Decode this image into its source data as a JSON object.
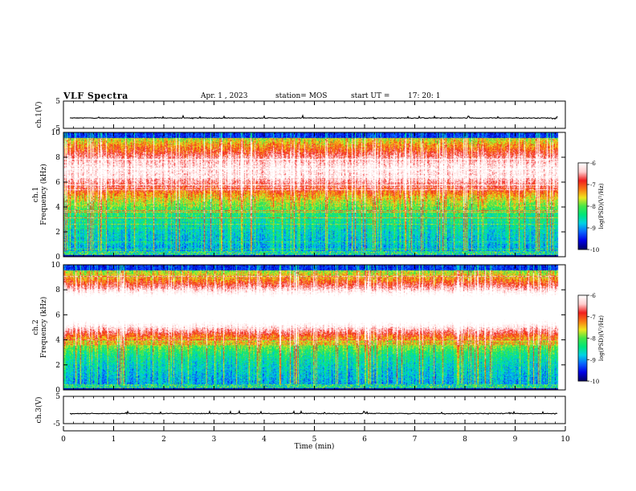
{
  "header": {
    "title": "VLF Spectra",
    "date": "Apr. 1 , 2023",
    "station": "station= MOS",
    "start_label": "start UT =",
    "start_time": "17: 20: 1"
  },
  "colors": {
    "palette": [
      "#000066",
      "#0000e6",
      "#0a64ff",
      "#00d2e6",
      "#00e67a",
      "#46e646",
      "#f0e61e",
      "#fa7814",
      "#f01e1e",
      "#ffcdcd",
      "#ffffff"
    ]
  },
  "chart_data": [
    {
      "type": "line",
      "name": "waveform-ch1",
      "ylabel": "ch.1(V)",
      "ylim": [
        -5,
        5
      ],
      "yticks": [
        "5",
        "-5"
      ],
      "baseline": -1.2
    },
    {
      "type": "heatmap",
      "name": "spectrogram-ch1",
      "ylabel_top": "ch.1",
      "ylabel": "Frequency (kHz)",
      "ylim": [
        0,
        10
      ],
      "yticks": [
        "0",
        "2",
        "4",
        "6",
        "8",
        "10"
      ],
      "colorbar": {
        "label": "log(PSD)(V²/Hz)",
        "range": [
          -10,
          -6
        ],
        "ticks": [
          "-6",
          "-7",
          "-8",
          "-9",
          "-10"
        ]
      },
      "band_peak_khz": 7.0,
      "band_level": 0.55
    },
    {
      "type": "heatmap",
      "name": "spectrogram-ch2",
      "ylabel_top": "ch.2",
      "ylabel": "Frequency (kHz)",
      "ylim": [
        0,
        10
      ],
      "yticks": [
        "0",
        "2",
        "4",
        "6",
        "8",
        "10"
      ],
      "colorbar": {
        "label": "log(PSD)(V²/Hz)",
        "range": [
          -10,
          -6
        ],
        "ticks": [
          "-6",
          "-7",
          "-8",
          "-9",
          "-10"
        ]
      },
      "band_peak_khz": 6.5,
      "band_level": 0.85
    },
    {
      "type": "line",
      "name": "waveform-ch3",
      "ylabel": "ch.3(V)",
      "ylim": [
        -5,
        5
      ],
      "yticks": [
        "5",
        "-5"
      ],
      "baseline": -1.3
    }
  ],
  "xaxis": {
    "label": "Time  (min)",
    "range": [
      0,
      10
    ],
    "ticks": [
      "0",
      "1",
      "2",
      "3",
      "4",
      "5",
      "6",
      "7",
      "8",
      "9",
      "10"
    ],
    "data_end_min": 9.85
  }
}
